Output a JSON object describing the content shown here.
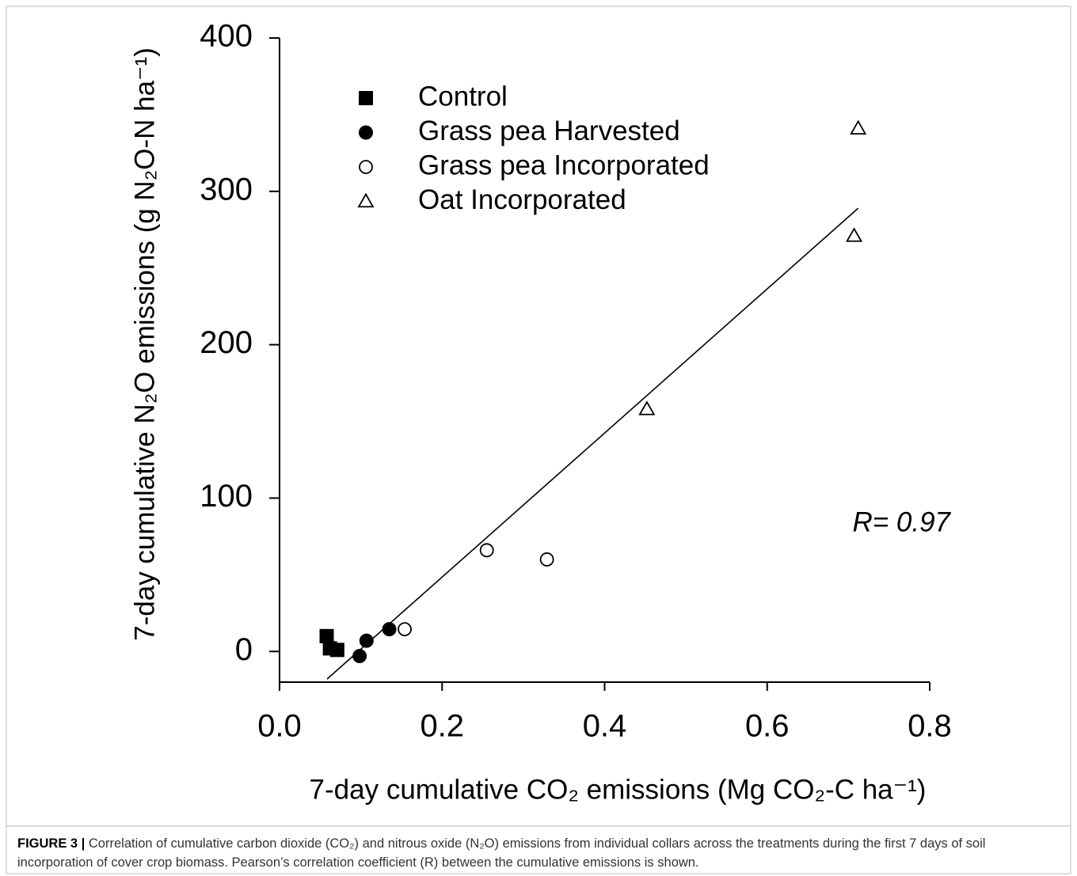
{
  "chart_data": {
    "type": "scatter",
    "xlabel": "7-day cumulative CO₂ emissions (Mg CO₂-C ha⁻¹)",
    "ylabel": "7-day cumulative N₂O emissions (g N₂O-N ha⁻¹)",
    "xlim": [
      0,
      0.8
    ],
    "ylim": [
      -20,
      400
    ],
    "xticks": [
      {
        "value": 0,
        "label": "0.0"
      },
      0.2,
      0.4,
      0.6,
      0.8
    ],
    "yticks": [
      0,
      100,
      200,
      300,
      400
    ],
    "series": [
      {
        "name": "Control",
        "color": "#000000",
        "marker": "square",
        "x": [
          0.058,
          0.062,
          0.071
        ],
        "values": [
          10,
          2,
          1
        ]
      },
      {
        "name": "Grass pea Harvested",
        "color": "#000000",
        "marker": "circle",
        "x": [
          0.0985,
          0.107,
          0.135
        ],
        "values": [
          -3,
          7,
          14.5
        ]
      },
      {
        "name": "Grass pea Incorporated",
        "color": "#000000",
        "marker": "circle-open",
        "x": [
          0.154,
          0.255,
          0.329
        ],
        "values": [
          14.5,
          66,
          60
        ]
      },
      {
        "name": "Oat Incorporated",
        "color": "#000000",
        "marker": "triangle-open",
        "x": [
          0.452,
          0.707,
          0.712
        ],
        "values": [
          158,
          271,
          341
        ]
      }
    ],
    "fit": {
      "x": [
        0.0585,
        0.712
      ],
      "values": [
        -18,
        289
      ]
    },
    "annotation": "R= 0.97"
  },
  "caption": {
    "label": "FIGURE 3 |",
    "text": "Correlation of cumulative carbon dioxide (CO₂) and nitrous oxide (N₂O) emissions from individual collars across the treatments during the first 7 days of soil incorporation of cover crop biomass. Pearson’s correlation coefficient (R) between the cumulative emissions is shown."
  }
}
